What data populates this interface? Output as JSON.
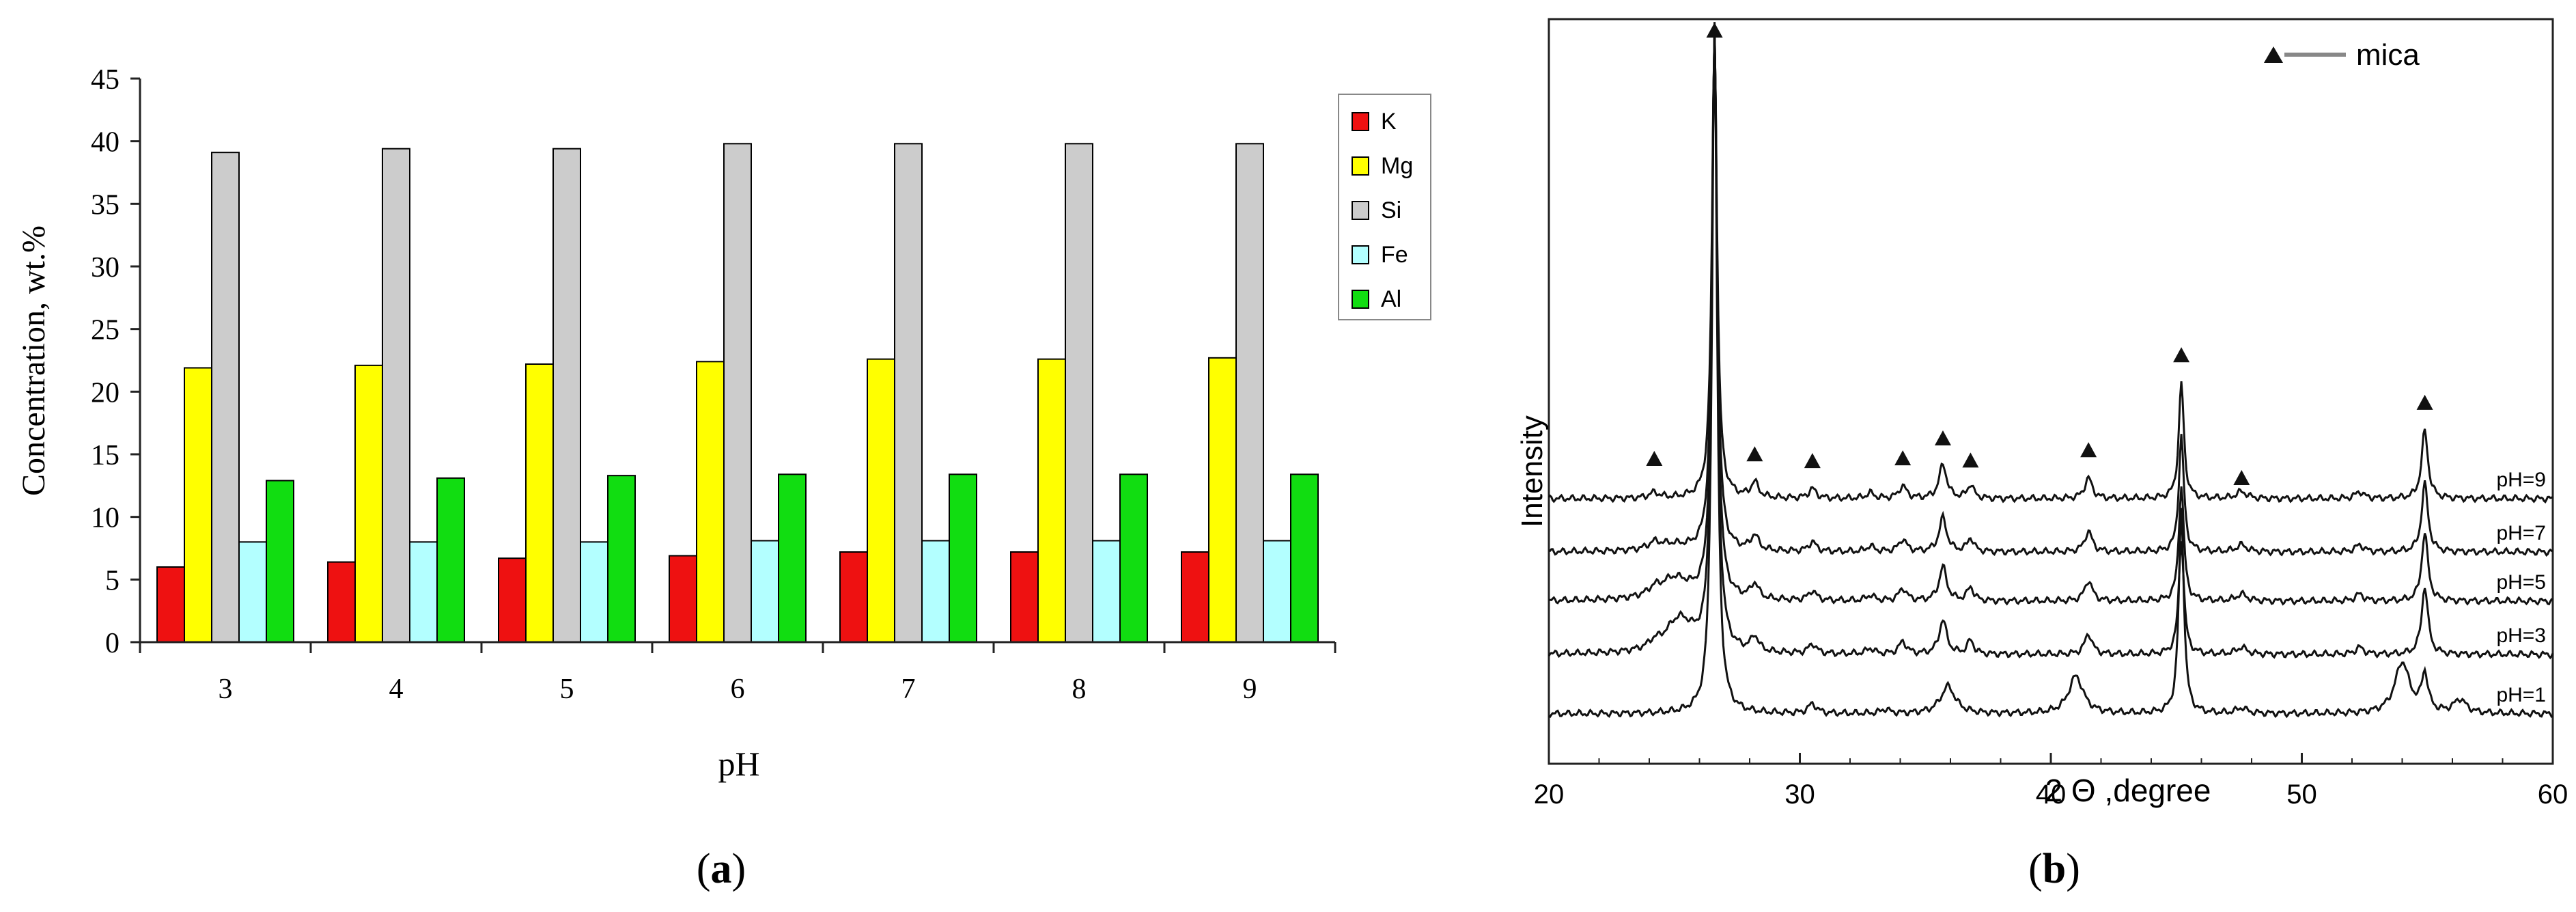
{
  "panel_labels": {
    "a": "(a)",
    "b": "(b)",
    "a_letter": "a",
    "b_letter": "b"
  },
  "chart_data": [
    {
      "type": "bar",
      "title": "",
      "xlabel": "pH",
      "ylabel": "Concentration, wt.%",
      "categories": [
        "3",
        "4",
        "5",
        "6",
        "7",
        "8",
        "9"
      ],
      "ylim": [
        0,
        45
      ],
      "yticks": [
        "0",
        "5",
        "10",
        "15",
        "20",
        "25",
        "30",
        "35",
        "40",
        "45"
      ],
      "grid": false,
      "legend_position": "right",
      "series": [
        {
          "name": "K",
          "color": "#ee1111",
          "values": [
            6.0,
            6.4,
            6.7,
            6.9,
            7.2,
            7.2,
            7.2
          ]
        },
        {
          "name": "Mg",
          "color": "#ffff00",
          "values": [
            21.9,
            22.1,
            22.2,
            22.4,
            22.6,
            22.6,
            22.7
          ]
        },
        {
          "name": "Si",
          "color": "#cccccc",
          "values": [
            39.1,
            39.4,
            39.4,
            39.8,
            39.8,
            39.8,
            39.8
          ]
        },
        {
          "name": "Fe",
          "color": "#b3ffff",
          "values": [
            8.0,
            8.0,
            8.0,
            8.1,
            8.1,
            8.1,
            8.1
          ]
        },
        {
          "name": "Al",
          "color": "#11dd11",
          "values": [
            12.9,
            13.1,
            13.3,
            13.4,
            13.4,
            13.4,
            13.4
          ]
        }
      ]
    },
    {
      "type": "line",
      "title": "",
      "xlabel": "2 Θ ,degree",
      "ylabel": "Intensity",
      "xlim": [
        20,
        60
      ],
      "xticks": [
        "20",
        "30",
        "40",
        "50",
        "60"
      ],
      "legend_label": "mica",
      "legend_position": "top-right",
      "mica_peaks_2theta": [
        24.2,
        26.6,
        28.2,
        30.5,
        34.1,
        35.7,
        36.8,
        41.5,
        45.2,
        47.6,
        54.9
      ],
      "series": [
        {
          "name": "pH=9",
          "offset": 4
        },
        {
          "name": "pH=7",
          "offset": 3
        },
        {
          "name": "pH=5",
          "offset": 2
        },
        {
          "name": "pH=3",
          "offset": 1
        },
        {
          "name": "pH=1",
          "offset": 0
        }
      ]
    }
  ]
}
